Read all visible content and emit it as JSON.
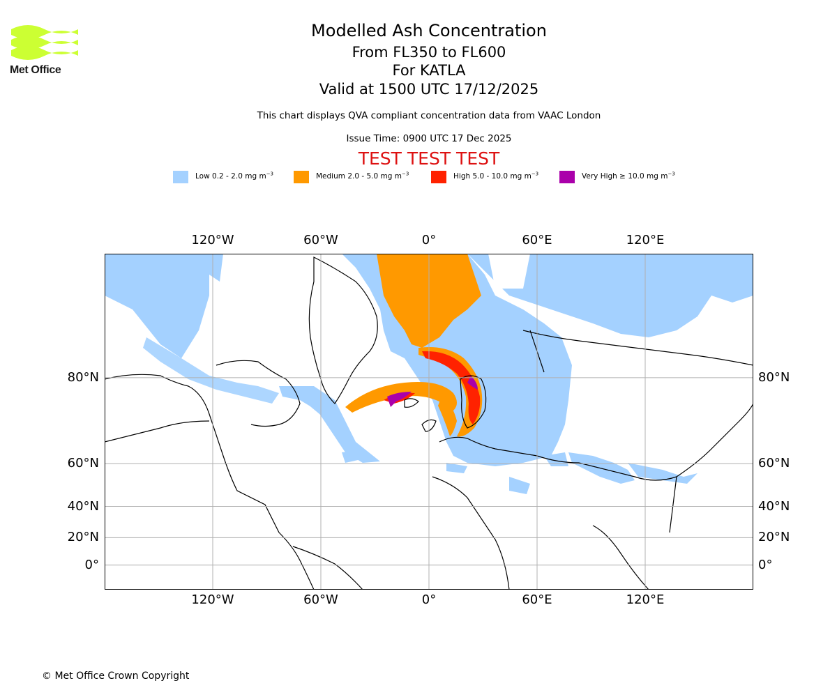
{
  "logo": {
    "icon": "met-office-wave-logo",
    "text": "Met Office",
    "color": "#ccff33"
  },
  "header": {
    "title": "Modelled Ash Concentration",
    "subtitle_1": "From FL350 to FL600",
    "subtitle_2": "For KATLA",
    "subtitle_3": "Valid at 1500 UTC 17/12/2025",
    "info": "This chart displays QVA compliant concentration data from VAAC London",
    "issue_time": "Issue Time: 0900 UTC 17 Dec 2025",
    "test_banner": "TEST TEST TEST"
  },
  "legend": [
    {
      "label": "Low 0.2 - 2.0 mg m",
      "unit_exp": "−3",
      "color": "#a4d1ff"
    },
    {
      "label": "Medium 2.0 - 5.0 mg m",
      "unit_exp": "−3",
      "color": "#ff9900"
    },
    {
      "label": "High 5.0 - 10.0 mg m",
      "unit_exp": "−3",
      "color": "#ff2200"
    },
    {
      "label": "Very High  ≥  10.0 mg m",
      "unit_exp": "−3",
      "color": "#aa00aa"
    }
  ],
  "map": {
    "projection": "mercator",
    "lon_range": [
      -180,
      180
    ],
    "lat_range": [
      -18,
      88
    ],
    "lon_ticks": [
      {
        "value": -120,
        "label": "120°W"
      },
      {
        "value": -60,
        "label": "60°W"
      },
      {
        "value": 0,
        "label": "0°"
      },
      {
        "value": 60,
        "label": "60°E"
      },
      {
        "value": 120,
        "label": "120°E"
      }
    ],
    "lat_ticks": [
      {
        "value": 80,
        "label": "80°N"
      },
      {
        "value": 60,
        "label": "60°N"
      },
      {
        "value": 40,
        "label": "40°N"
      },
      {
        "value": 20,
        "label": "20°N"
      },
      {
        "value": 0,
        "label": "0°"
      }
    ],
    "grid": true,
    "gridline_color": "#b0b0b0"
  },
  "footer": {
    "copyright": "© Met Office Crown Copyright"
  }
}
